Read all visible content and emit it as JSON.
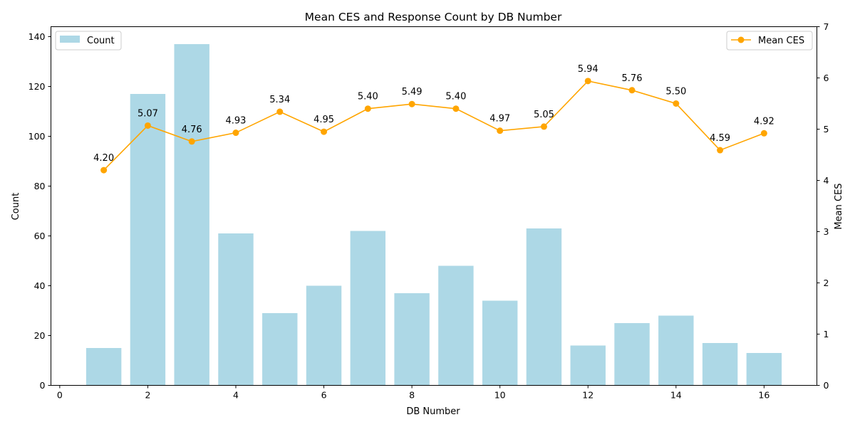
{
  "chart_data": {
    "type": "bar+line",
    "title": "Mean CES and Response Count by DB Number",
    "xlabel": "DB Number",
    "ylabel_left": "Count",
    "ylabel_right": "Mean CES",
    "x": [
      1,
      2,
      3,
      4,
      5,
      6,
      7,
      8,
      9,
      10,
      11,
      12,
      13,
      14,
      15,
      16
    ],
    "xlim": [
      -0.2,
      17.2
    ],
    "x_ticks": [
      "0",
      "2",
      "4",
      "6",
      "8",
      "10",
      "12",
      "14",
      "16"
    ],
    "ylim_left": [
      0,
      144
    ],
    "y_ticks_left": [
      "0",
      "20",
      "40",
      "60",
      "80",
      "100",
      "120",
      "140"
    ],
    "ylim_right": [
      0,
      7
    ],
    "y_ticks_right": [
      "0",
      "1",
      "2",
      "3",
      "4",
      "5",
      "6",
      "7"
    ],
    "series": [
      {
        "name": "Count",
        "kind": "bar",
        "color": "#add8e6",
        "values": [
          15,
          117,
          137,
          61,
          29,
          40,
          62,
          37,
          48,
          34,
          63,
          16,
          25,
          28,
          17,
          13
        ]
      },
      {
        "name": "Mean CES",
        "kind": "line",
        "color": "#ffa500",
        "values": [
          4.2,
          5.07,
          4.76,
          4.93,
          5.34,
          4.95,
          5.4,
          5.49,
          5.4,
          4.97,
          5.05,
          5.94,
          5.76,
          5.5,
          4.59,
          4.92
        ],
        "labels": [
          "4.20",
          "5.07",
          "4.76",
          "4.93",
          "5.34",
          "4.95",
          "5.40",
          "5.49",
          "5.40",
          "4.97",
          "5.05",
          "5.94",
          "5.76",
          "5.50",
          "4.59",
          "4.92"
        ]
      }
    ],
    "legend_left": {
      "label": "Count",
      "placement": "top-left"
    },
    "legend_right": {
      "label": "Mean CES",
      "placement": "top-right"
    },
    "grid": false
  }
}
